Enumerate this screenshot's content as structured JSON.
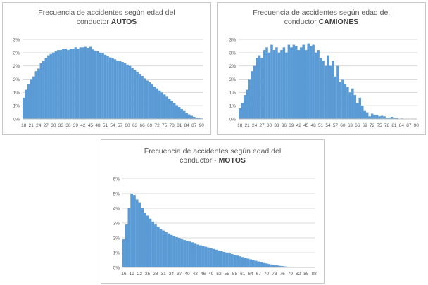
{
  "charts": [
    {
      "title_line1": "Frecuencia de accidentes según edad del",
      "title_line2_prefix": "conductor ",
      "title_line2_bold": "AUTOS"
    },
    {
      "title_line1": "Frecuencia de accidentes según edad del",
      "title_line2_prefix": "conductor ",
      "title_line2_bold": "CAMIONES"
    },
    {
      "title_line1": "Frecuencia de accidentes según edad del",
      "title_line2_prefix": "conductor - ",
      "title_line2_bold": "MOTOS"
    }
  ],
  "colors": {
    "bar": "#5b9bd5",
    "grid": "#d9d9d9",
    "axis_text": "#595959"
  },
  "chart_data": [
    {
      "type": "bar",
      "title": "Frecuencia de accidentes según edad del conductor AUTOS",
      "xlabel": "",
      "ylabel": "",
      "ylim": [
        0,
        3.0
      ],
      "y_unit": "%",
      "yticks": [
        0,
        0.5,
        1.0,
        1.5,
        2.0,
        2.5,
        3.0
      ],
      "ytick_labels": [
        "0%",
        "1%",
        "1%",
        "2%",
        "2%",
        "3%",
        "3%"
      ],
      "x_start": 18,
      "x_end": 90,
      "xtick_labels": [
        "18",
        "21",
        "24",
        "27",
        "30",
        "33",
        "36",
        "39",
        "42",
        "45",
        "48",
        "51",
        "54",
        "57",
        "60",
        "63",
        "66",
        "69",
        "72",
        "75",
        "78",
        "81",
        "84",
        "87",
        "90"
      ],
      "grid": true,
      "values": [
        0.8,
        1.1,
        1.3,
        1.5,
        1.6,
        1.8,
        1.9,
        2.1,
        2.2,
        2.3,
        2.4,
        2.45,
        2.5,
        2.55,
        2.6,
        2.6,
        2.65,
        2.65,
        2.6,
        2.65,
        2.65,
        2.7,
        2.65,
        2.7,
        2.7,
        2.72,
        2.68,
        2.72,
        2.62,
        2.58,
        2.55,
        2.5,
        2.48,
        2.42,
        2.38,
        2.32,
        2.3,
        2.25,
        2.2,
        2.18,
        2.15,
        2.1,
        2.05,
        2.0,
        1.93,
        1.85,
        1.78,
        1.7,
        1.62,
        1.53,
        1.45,
        1.38,
        1.3,
        1.22,
        1.15,
        1.07,
        1.0,
        0.92,
        0.84,
        0.76,
        0.68,
        0.6,
        0.52,
        0.45,
        0.37,
        0.3,
        0.23,
        0.17,
        0.12,
        0.08,
        0.05,
        0.03,
        0.02
      ]
    },
    {
      "type": "bar",
      "title": "Frecuencia de accidentes según edad del conductor CAMIONES",
      "xlabel": "",
      "ylabel": "",
      "ylim": [
        0,
        3.0
      ],
      "y_unit": "%",
      "yticks": [
        0,
        0.5,
        1.0,
        1.5,
        2.0,
        2.5,
        3.0
      ],
      "ytick_labels": [
        "0%",
        "1%",
        "1%",
        "2%",
        "2%",
        "3%",
        "3%"
      ],
      "x_start": 18,
      "x_end": 90,
      "xtick_labels": [
        "18",
        "21",
        "24",
        "27",
        "30",
        "33",
        "36",
        "39",
        "42",
        "45",
        "48",
        "51",
        "54",
        "57",
        "60",
        "63",
        "66",
        "69",
        "72",
        "75",
        "78",
        "81",
        "84",
        "87",
        "90"
      ],
      "grid": true,
      "values": [
        0.4,
        0.6,
        0.9,
        1.1,
        1.5,
        1.8,
        2.0,
        2.3,
        2.4,
        2.3,
        2.6,
        2.7,
        2.5,
        2.8,
        2.6,
        2.7,
        2.5,
        2.6,
        2.7,
        2.5,
        2.8,
        2.7,
        2.8,
        2.75,
        2.6,
        2.7,
        2.8,
        2.6,
        2.85,
        2.75,
        2.8,
        2.5,
        2.6,
        2.3,
        2.2,
        2.0,
        2.4,
        2.0,
        2.2,
        1.6,
        2.0,
        1.4,
        1.5,
        1.3,
        1.2,
        1.0,
        1.15,
        0.9,
        0.6,
        0.8,
        0.5,
        0.3,
        0.25,
        0.1,
        0.2,
        0.15,
        0.15,
        0.1,
        0.12,
        0.1,
        0.05,
        0.05,
        0.08,
        0.05,
        0.03,
        0.0,
        0.02,
        0,
        0,
        0,
        0,
        0,
        0
      ]
    },
    {
      "type": "bar",
      "title": "Frecuencia de accidentes según edad del conductor - MOTOS",
      "xlabel": "",
      "ylabel": "",
      "ylim": [
        0,
        6
      ],
      "y_unit": "%",
      "yticks": [
        0,
        1,
        2,
        3,
        4,
        5,
        6
      ],
      "ytick_labels": [
        "0%",
        "1%",
        "2%",
        "3%",
        "4%",
        "5%",
        "6%"
      ],
      "x_start": 16,
      "x_end": 88,
      "xtick_labels": [
        "16",
        "19",
        "22",
        "25",
        "28",
        "31",
        "34",
        "37",
        "40",
        "43",
        "46",
        "49",
        "52",
        "55",
        "58",
        "61",
        "64",
        "67",
        "70",
        "73",
        "76",
        "79",
        "82",
        "85",
        "88"
      ],
      "grid": true,
      "values": [
        1.9,
        2.9,
        4.0,
        5.0,
        4.9,
        4.6,
        4.4,
        4.0,
        3.7,
        3.5,
        3.3,
        3.1,
        2.9,
        2.75,
        2.6,
        2.5,
        2.4,
        2.3,
        2.2,
        2.1,
        2.05,
        2.0,
        1.9,
        1.85,
        1.8,
        1.75,
        1.7,
        1.6,
        1.55,
        1.5,
        1.45,
        1.4,
        1.35,
        1.3,
        1.25,
        1.2,
        1.15,
        1.1,
        1.05,
        1.0,
        0.95,
        0.9,
        0.85,
        0.8,
        0.75,
        0.7,
        0.65,
        0.6,
        0.55,
        0.5,
        0.45,
        0.4,
        0.35,
        0.3,
        0.27,
        0.23,
        0.2,
        0.17,
        0.14,
        0.11,
        0.09,
        0.07,
        0.05,
        0.04,
        0.03,
        0.02,
        0.01,
        0,
        0,
        0,
        0,
        0,
        0
      ]
    }
  ]
}
